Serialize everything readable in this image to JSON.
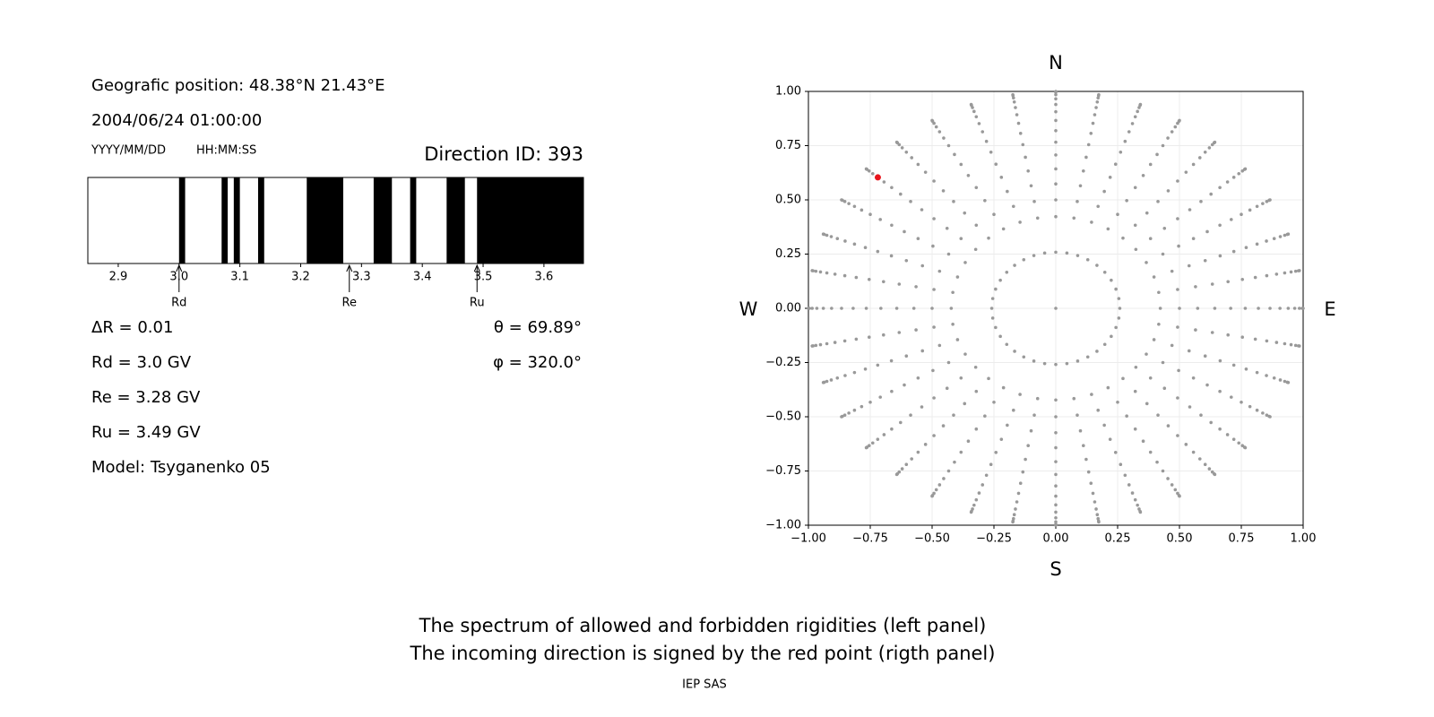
{
  "header": {
    "position": "Geografic position: 48.38°N 21.43°E",
    "datetime": "2004/06/24 01:00:00",
    "date_format": "YYYY/MM/DD",
    "time_format": "HH:MM:SS",
    "direction_id": "Direction ID: 393"
  },
  "chart_data": [
    {
      "type": "spectrum",
      "xlim": [
        2.85,
        3.665
      ],
      "xticks": [
        2.9,
        {
          "value": 3,
          "label": "3.0"
        },
        3.1,
        3.2,
        3.3,
        3.4,
        3.5,
        3.6
      ],
      "color": "#000000",
      "forbidden": [
        [
          3.0,
          3.01
        ],
        [
          3.07,
          3.08
        ],
        [
          3.09,
          3.1
        ],
        [
          3.13,
          3.14
        ],
        [
          3.21,
          3.27
        ],
        [
          3.32,
          3.35
        ],
        [
          3.38,
          3.39
        ],
        [
          3.44,
          3.47
        ],
        [
          3.49,
          3.665
        ]
      ],
      "markers": [
        {
          "label": "Rd",
          "value": 3.0
        },
        {
          "label": "Re",
          "value": 3.28
        },
        {
          "label": "Ru",
          "value": 3.49
        }
      ]
    },
    {
      "type": "scatter",
      "xlim": [
        -1,
        1
      ],
      "ylim": [
        -1,
        1
      ],
      "xticks": [
        {
          "value": -1,
          "label": "−1.00"
        },
        {
          "value": -0.75,
          "label": "−0.75"
        },
        {
          "value": -0.5,
          "label": "−0.50"
        },
        {
          "value": -0.25,
          "label": "−0.25"
        },
        {
          "value": 0,
          "label": "0.00"
        },
        {
          "value": 0.25,
          "label": "0.25"
        },
        {
          "value": 0.5,
          "label": "0.50"
        },
        {
          "value": 0.75,
          "label": "0.75"
        },
        {
          "value": 1,
          "label": "1.00"
        }
      ],
      "yticks": [
        {
          "value": -1,
          "label": "−1.00"
        },
        {
          "value": -0.75,
          "label": "−0.75"
        },
        {
          "value": -0.5,
          "label": "−0.50"
        },
        {
          "value": -0.25,
          "label": "−0.25"
        },
        {
          "value": 0,
          "label": "0.00"
        },
        {
          "value": 0.25,
          "label": "0.25"
        },
        {
          "value": 0.5,
          "label": "0.50"
        },
        {
          "value": 0.75,
          "label": "0.75"
        },
        {
          "value": 1,
          "label": "1.00"
        }
      ],
      "grid": true,
      "color": "#999999",
      "zenith_angles": [
        0,
        15,
        25,
        30,
        35,
        40,
        45,
        50,
        55,
        60,
        65,
        70,
        75,
        80,
        85,
        90
      ],
      "azimuths": [
        0,
        10,
        20,
        30,
        40,
        50,
        60,
        70,
        80,
        90,
        100,
        110,
        120,
        130,
        140,
        150,
        160,
        170,
        180,
        190,
        200,
        210,
        220,
        230,
        240,
        250,
        260,
        270,
        280,
        290,
        300,
        310,
        320,
        330,
        340,
        350
      ],
      "highlight": {
        "theta": 69.89,
        "phi": 320.0,
        "color": "#e8141c"
      },
      "direction_labels": {
        "top": "N",
        "bottom": "S",
        "left": "W",
        "right": "E"
      }
    }
  ],
  "info_left": [
    "ΔR = 0.01",
    "Rd = 3.0 GV",
    "Re = 3.28 GV",
    "Ru = 3.49 GV",
    "Model: Tsyganenko 05"
  ],
  "info_right": [
    "θ = 69.89°",
    "φ = 320.0°"
  ],
  "caption": [
    "The spectrum of allowed and forbidden rigidities (left panel)",
    "The incoming direction is signed by the red point (rigth panel)"
  ],
  "footer": "IEP SAS"
}
